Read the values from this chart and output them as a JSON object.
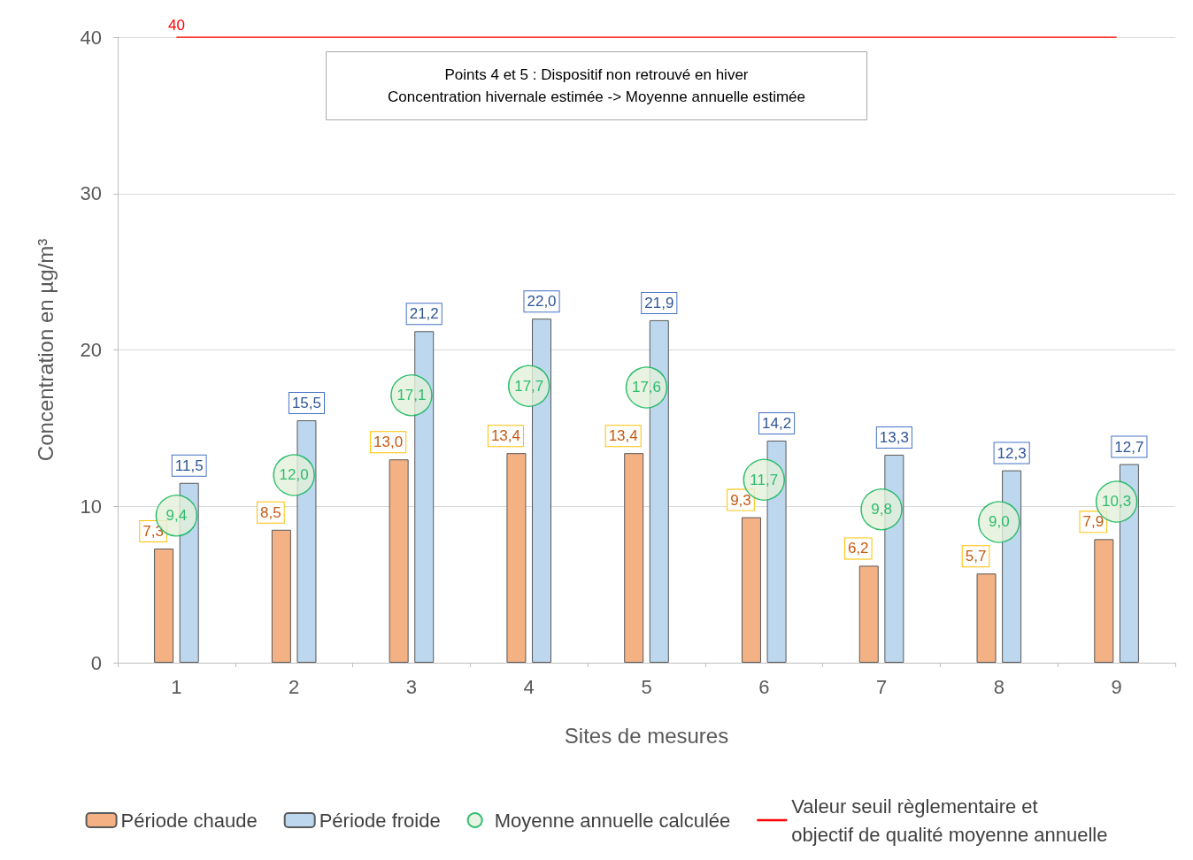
{
  "chart_data": {
    "type": "bar",
    "categories": [
      "1",
      "2",
      "3",
      "4",
      "5",
      "6",
      "7",
      "8",
      "9"
    ],
    "xlabel": "Sites de mesures",
    "ylabel": "Concentration en µg/m³",
    "series": [
      {
        "name": "Période chaude",
        "color": "#f4b183",
        "values": [
          7.3,
          8.5,
          13.0,
          13.4,
          13.4,
          9.3,
          6.2,
          5.7,
          7.9
        ],
        "value_labels": [
          "7,3",
          "8,5",
          "13,0",
          "13,4",
          "13,4",
          "9,3",
          "6,2",
          "5,7",
          "7,9"
        ]
      },
      {
        "name": "Période froide",
        "color": "#bdd7ee",
        "values": [
          11.5,
          15.5,
          21.2,
          22.0,
          21.9,
          14.2,
          13.3,
          12.3,
          12.7
        ],
        "value_labels": [
          "11,5",
          "15,5",
          "21,2",
          "22,0",
          "21,9",
          "14,2",
          "13,3",
          "12,3",
          "12,7"
        ]
      },
      {
        "name": "Moyenne annuelle calculée",
        "type": "scatter",
        "color": "#e2f0d9",
        "x": [
          "1",
          "2",
          "3",
          "4",
          "5",
          "6",
          "7",
          "8",
          "9"
        ],
        "values": [
          9.4,
          12.0,
          17.1,
          17.7,
          17.6,
          11.7,
          9.8,
          9.0,
          10.3
        ],
        "value_labels": [
          "9,4",
          "12,0",
          "17,1",
          "17,7",
          "17,6",
          "11,7",
          "9,8",
          "9,0",
          "10,3"
        ]
      },
      {
        "name": "Valeur seuil règlementaire et\nobjectif de qualité moyenne annuelle",
        "type": "line",
        "color": "#ff0000",
        "marker": "none",
        "values": [
          40,
          40,
          40,
          40,
          40,
          40,
          40,
          40,
          40
        ],
        "value_labels": [
          "40",
          null,
          null,
          null,
          null,
          null,
          null,
          null,
          null
        ]
      }
    ],
    "ylim": [
      0,
      40
    ],
    "yticks": [
      0,
      10,
      20,
      30,
      40
    ],
    "grid": "y",
    "legend": "bottom",
    "marker": "circle",
    "annotations": [
      "Points 4 et 5 : Dispositif non retrouvé en hiver\nConcentration hivernale estimée -> Moyenne annuelle estimée"
    ]
  }
}
